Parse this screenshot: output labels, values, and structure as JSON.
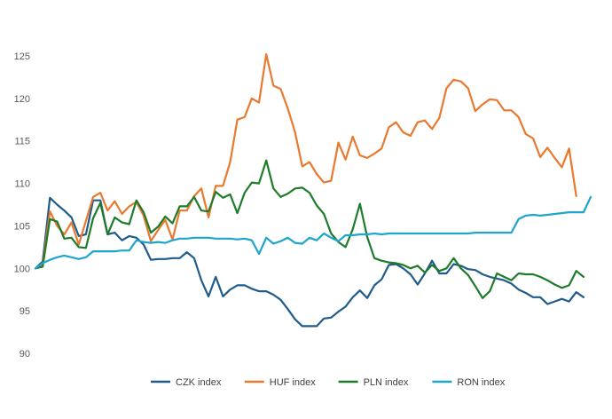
{
  "chart_data": {
    "type": "line",
    "title": "",
    "xlabel": "",
    "ylabel": "",
    "ylim": [
      90,
      125
    ],
    "yticks": [
      90,
      95,
      100,
      105,
      110,
      115,
      120,
      125
    ],
    "grid": false,
    "legend_position": "bottom",
    "n_points": 78,
    "series": [
      {
        "name": "CZK index",
        "color": "#1F5C8B",
        "values": [
          100.0,
          100.8,
          108.3,
          107.5,
          106.8,
          106.0,
          103.8,
          104.0,
          108.0,
          108.0,
          104.0,
          104.2,
          103.3,
          103.8,
          103.6,
          102.8,
          101.0,
          101.1,
          101.1,
          101.2,
          101.2,
          101.9,
          101.2,
          98.6,
          96.7,
          99.0,
          96.7,
          97.5,
          98.0,
          98.0,
          97.6,
          97.3,
          97.3,
          96.9,
          96.3,
          95.2,
          94.0,
          93.2,
          93.2,
          93.2,
          94.1,
          94.2,
          94.9,
          95.5,
          96.6,
          97.4,
          96.5,
          98.0,
          98.7,
          100.4,
          100.5,
          100.0,
          99.3,
          98.1,
          99.4,
          100.9,
          99.4,
          99.4,
          100.5,
          100.3,
          99.9,
          99.8,
          99.3,
          99.0,
          98.8,
          98.6,
          98.2,
          97.5,
          97.1,
          96.6,
          96.6,
          95.8,
          96.1,
          96.4,
          96.1,
          97.2,
          96.6,
          null
        ]
      },
      {
        "name": "HUF index",
        "color": "#E8792F",
        "values": [
          100.0,
          100.4,
          106.7,
          105.0,
          104.0,
          105.4,
          102.8,
          105.6,
          108.4,
          108.9,
          106.8,
          107.9,
          106.4,
          107.3,
          107.8,
          106.2,
          103.2,
          104.5,
          105.7,
          103.4,
          106.8,
          106.8,
          108.5,
          109.4,
          106.0,
          109.7,
          109.7,
          112.5,
          117.5,
          117.8,
          120.0,
          119.5,
          125.2,
          121.5,
          121.1,
          118.8,
          116.0,
          112.0,
          112.5,
          111.1,
          110.1,
          110.3,
          114.8,
          112.8,
          115.5,
          113.3,
          113.0,
          113.5,
          114.1,
          116.6,
          117.2,
          116.0,
          115.6,
          117.2,
          117.4,
          116.4,
          117.7,
          121.2,
          122.2,
          122.0,
          121.2,
          118.5,
          119.3,
          119.9,
          119.8,
          118.6,
          118.6,
          117.8,
          115.8,
          115.3,
          113.1,
          114.2,
          113.0,
          111.9,
          114.1,
          108.5,
          null,
          null
        ]
      },
      {
        "name": "PLN index",
        "color": "#1E7B2A",
        "values": [
          100.0,
          100.2,
          105.8,
          105.5,
          103.5,
          103.6,
          102.5,
          102.4,
          105.9,
          107.7,
          104.0,
          106.0,
          105.4,
          105.2,
          108.0,
          106.6,
          104.2,
          104.9,
          106.1,
          105.3,
          107.3,
          107.3,
          108.4,
          106.8,
          106.7,
          109.0,
          108.3,
          108.7,
          106.5,
          108.9,
          110.1,
          110.0,
          112.7,
          109.4,
          108.4,
          108.8,
          109.4,
          109.5,
          108.9,
          107.4,
          106.4,
          104.1,
          103.1,
          102.5,
          104.6,
          107.6,
          103.7,
          101.2,
          100.9,
          100.7,
          100.6,
          100.4,
          100.0,
          100.3,
          99.5,
          100.4,
          99.7,
          100.0,
          101.2,
          100.0,
          99.2,
          97.9,
          96.5,
          97.3,
          99.4,
          99.0,
          98.6,
          99.4,
          99.3,
          99.3,
          99.0,
          98.6,
          98.1,
          97.7,
          98.0,
          99.7,
          99.0,
          null
        ]
      },
      {
        "name": "RON index",
        "color": "#1EA5CD",
        "values": [
          100.0,
          100.6,
          101.0,
          101.3,
          101.5,
          101.3,
          101.1,
          101.3,
          102.0,
          102.0,
          102.0,
          102.0,
          102.1,
          102.1,
          103.3,
          103.1,
          103.0,
          103.1,
          103.0,
          103.3,
          103.5,
          103.5,
          103.6,
          103.6,
          103.6,
          103.5,
          103.5,
          103.5,
          103.4,
          103.5,
          103.3,
          101.7,
          103.6,
          102.9,
          103.2,
          103.6,
          103.0,
          102.9,
          103.6,
          103.3,
          104.1,
          103.6,
          103.2,
          103.9,
          103.9,
          104.0,
          104.0,
          104.1,
          104.0,
          104.1,
          104.1,
          104.1,
          104.1,
          104.1,
          104.1,
          104.1,
          104.1,
          104.1,
          104.1,
          104.1,
          104.1,
          104.2,
          104.2,
          104.2,
          104.2,
          104.2,
          104.2,
          105.8,
          106.2,
          106.3,
          106.2,
          106.3,
          106.4,
          106.5,
          106.6,
          106.6,
          106.6,
          108.4
        ]
      }
    ]
  }
}
